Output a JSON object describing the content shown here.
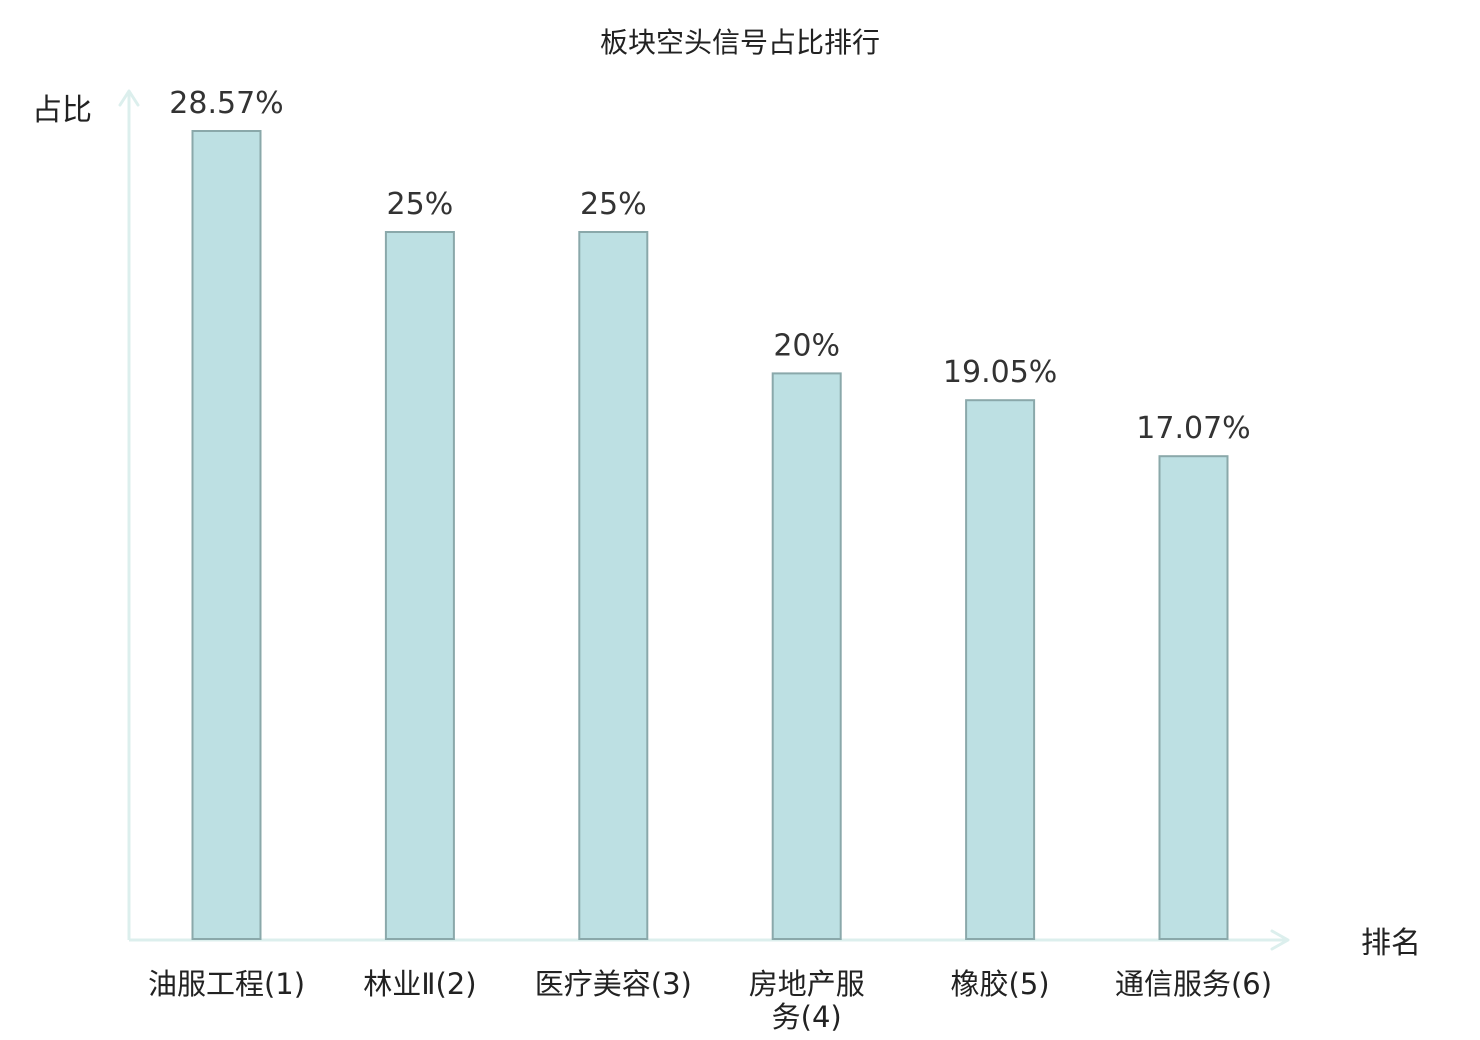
{
  "chart_data": {
    "type": "bar",
    "title": "板块空头信号占比排行",
    "ylabel": "占比",
    "xlabel": "排名",
    "categories": [
      [
        "油服工程(1)"
      ],
      [
        "林业Ⅱ(2)"
      ],
      [
        "医疗美容(3)"
      ],
      [
        "房地产服",
        "务(4)"
      ],
      [
        "橡胶(5)"
      ],
      [
        "通信服务(6)"
      ]
    ],
    "values": [
      28.57,
      25,
      25,
      20,
      19.05,
      17.07
    ],
    "value_labels": [
      "28.57%",
      "25%",
      "25%",
      "20%",
      "19.05%",
      "17.07%"
    ],
    "ylim": [
      0,
      30
    ],
    "highlight_index": 5,
    "colors": {
      "bar_fill": "#bde0e3",
      "bar_stroke": "#8aa8aa",
      "axis": "#dcefed",
      "text": "#222222",
      "highlight": "#e02020"
    }
  }
}
